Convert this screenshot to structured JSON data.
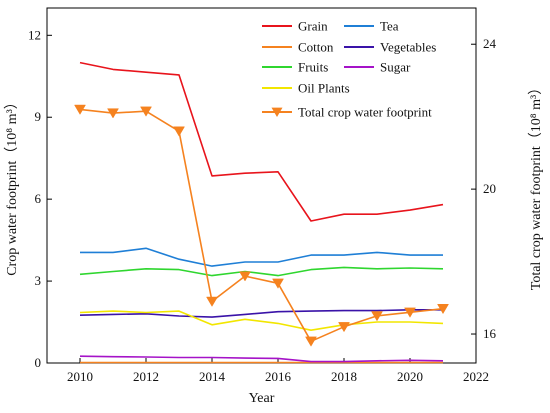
{
  "chart_data": {
    "type": "line",
    "x": [
      2010,
      2011,
      2012,
      2013,
      2014,
      2015,
      2016,
      2017,
      2018,
      2019,
      2020,
      2021
    ],
    "xlim": [
      2009,
      2022
    ],
    "xticks": [
      "2010",
      "2012",
      "2014",
      "2016",
      "2018",
      "2020",
      "2022"
    ],
    "xlabel": "Year",
    "ylabel_left": "Crop water footprint（10⁸ m³）",
    "ylabel_right": "Total crop water footprint（10⁸ m³）",
    "ylim_left": [
      0,
      13
    ],
    "yticks_left": [
      "0",
      "3",
      "6",
      "9",
      "12"
    ],
    "ylim_right": [
      15.2,
      25.0
    ],
    "yticks_right": [
      "16",
      "20",
      "24"
    ],
    "grid": false,
    "legend_position": "top-right",
    "series": [
      {
        "name": "Grain",
        "axis": "left",
        "color": "#e8141c",
        "marker": "none",
        "values": [
          11.0,
          10.75,
          10.65,
          10.55,
          6.85,
          6.95,
          7.0,
          5.2,
          5.45,
          5.45,
          5.6,
          5.8
        ]
      },
      {
        "name": "Tea",
        "axis": "left",
        "color": "#1f7fd6",
        "marker": "none",
        "values": [
          4.05,
          4.05,
          4.2,
          3.8,
          3.55,
          3.7,
          3.7,
          3.95,
          3.95,
          4.05,
          3.95,
          3.95
        ]
      },
      {
        "name": "Cotton",
        "axis": "left",
        "color": "#f5821f",
        "marker": "none",
        "values": [
          0.02,
          0.02,
          0.02,
          0.02,
          0.02,
          0.02,
          0.02,
          0.02,
          0.02,
          0.02,
          0.02,
          0.02
        ]
      },
      {
        "name": "Vegetables",
        "axis": "left",
        "color": "#3a13a8",
        "marker": "none",
        "values": [
          1.75,
          1.78,
          1.8,
          1.72,
          1.68,
          1.78,
          1.88,
          1.9,
          1.92,
          1.92,
          1.95,
          1.95
        ]
      },
      {
        "name": "Fruits",
        "axis": "left",
        "color": "#2fd62f",
        "marker": "none",
        "values": [
          3.25,
          3.35,
          3.45,
          3.42,
          3.2,
          3.35,
          3.2,
          3.42,
          3.5,
          3.45,
          3.48,
          3.45
        ]
      },
      {
        "name": "Sugar",
        "axis": "left",
        "color": "#a513c8",
        "marker": "none",
        "values": [
          0.25,
          0.23,
          0.22,
          0.2,
          0.2,
          0.18,
          0.17,
          0.05,
          0.05,
          0.08,
          0.1,
          0.08
        ]
      },
      {
        "name": "Oil Plants",
        "axis": "left",
        "color": "#f2e600",
        "marker": "none",
        "values": [
          1.85,
          1.9,
          1.85,
          1.9,
          1.4,
          1.6,
          1.45,
          1.2,
          1.4,
          1.5,
          1.5,
          1.45
        ]
      },
      {
        "name": "Total crop water footprint",
        "axis": "right",
        "color": "#f5821f",
        "marker": "triangle-down",
        "values": [
          22.2,
          22.1,
          22.15,
          21.6,
          16.9,
          17.6,
          17.4,
          15.8,
          16.2,
          16.5,
          16.6,
          16.7
        ]
      }
    ]
  }
}
